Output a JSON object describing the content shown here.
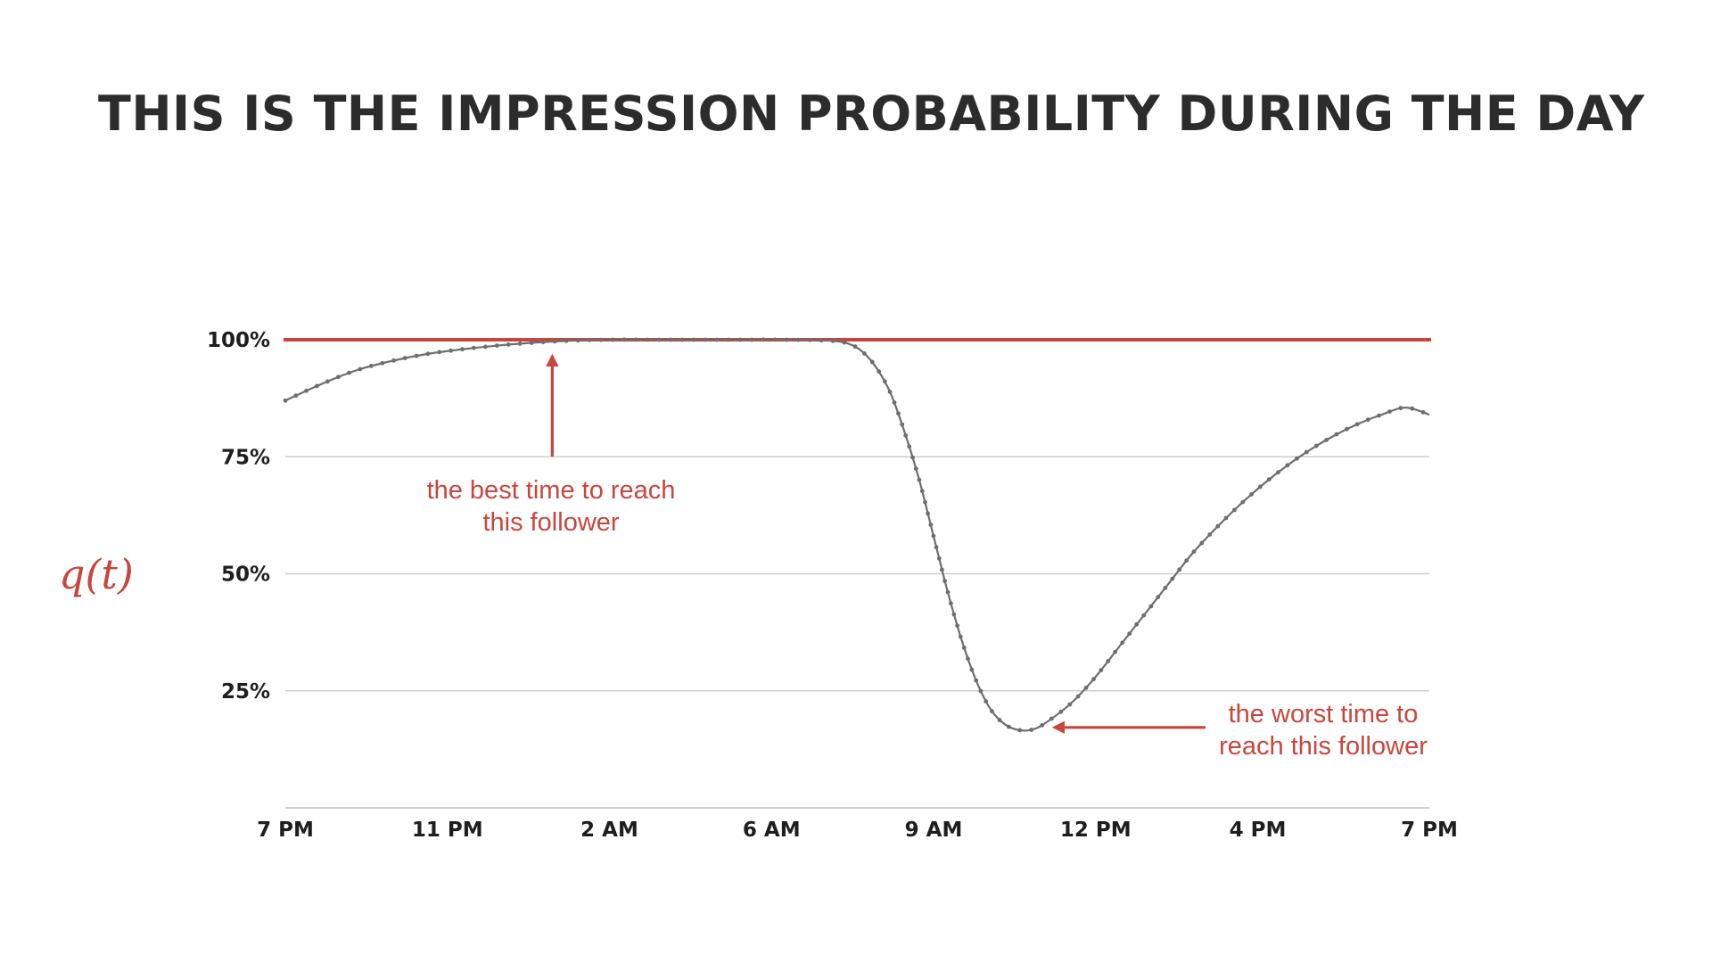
{
  "slide": {
    "title": "THIS IS THE IMPRESSION PROBABILITY DURING THE DAY"
  },
  "colors": {
    "accent": "#c9463d",
    "curve": "#6e6e6e",
    "grid": "#cfcfcf",
    "text": "#2c2c2c"
  },
  "chart_data": {
    "type": "line",
    "title": "",
    "xlabel": "",
    "ylabel": "q(t)",
    "x_unit": "hours after 7 PM",
    "xlim": [
      0,
      24
    ],
    "ylim": [
      0,
      100
    ],
    "x_ticks": [
      {
        "label": "7 PM",
        "value": 0
      },
      {
        "label": "11 PM",
        "value": 3.4
      },
      {
        "label": "2 AM",
        "value": 6.8
      },
      {
        "label": "6 AM",
        "value": 10.2
      },
      {
        "label": "9 AM",
        "value": 13.6
      },
      {
        "label": "12 PM",
        "value": 17.0
      },
      {
        "label": "4 PM",
        "value": 20.4
      },
      {
        "label": "7 PM",
        "value": 24
      }
    ],
    "y_ticks": [
      {
        "label": "25%",
        "value": 25
      },
      {
        "label": "50%",
        "value": 50
      },
      {
        "label": "75%",
        "value": 75
      },
      {
        "label": "100%",
        "value": 100
      }
    ],
    "grid": true,
    "reference_line": {
      "value": 100
    },
    "series": [
      {
        "points": [
          [
            0,
            87
          ],
          [
            0.75,
            90.5
          ],
          [
            1.5,
            93.5
          ],
          [
            2.25,
            95.5
          ],
          [
            3,
            97
          ],
          [
            3.75,
            98
          ],
          [
            4.5,
            98.8
          ],
          [
            5.25,
            99.4
          ],
          [
            6,
            99.8
          ],
          [
            6.75,
            100
          ],
          [
            8,
            100
          ],
          [
            9.5,
            100
          ],
          [
            10.5,
            100
          ],
          [
            11.4,
            99.8
          ],
          [
            11.8,
            99.2
          ],
          [
            12.1,
            97.5
          ],
          [
            12.4,
            94
          ],
          [
            12.7,
            88.5
          ],
          [
            13.0,
            80
          ],
          [
            13.3,
            70
          ],
          [
            13.6,
            58
          ],
          [
            13.9,
            46
          ],
          [
            14.2,
            35.5
          ],
          [
            14.5,
            27
          ],
          [
            14.8,
            21
          ],
          [
            15.1,
            17.8
          ],
          [
            15.4,
            16.6
          ],
          [
            15.7,
            16.8
          ],
          [
            16.0,
            18.5
          ],
          [
            16.5,
            22.5
          ],
          [
            17,
            28
          ],
          [
            17.5,
            34.5
          ],
          [
            18,
            41
          ],
          [
            18.5,
            47.5
          ],
          [
            19,
            54
          ],
          [
            19.5,
            59.5
          ],
          [
            20,
            64.5
          ],
          [
            20.5,
            69
          ],
          [
            21,
            73
          ],
          [
            21.5,
            76.5
          ],
          [
            22,
            79.5
          ],
          [
            22.5,
            82
          ],
          [
            23,
            84
          ],
          [
            23.5,
            85.5
          ],
          [
            24,
            84
          ]
        ]
      }
    ],
    "annotations": [
      {
        "lines": [
          "the best time to reach",
          "this follower"
        ],
        "points_to": [
          5.6,
          99.5
        ]
      },
      {
        "lines": [
          "the worst time to",
          "reach this follower"
        ],
        "points_to": [
          15.8,
          16.8
        ]
      }
    ]
  }
}
